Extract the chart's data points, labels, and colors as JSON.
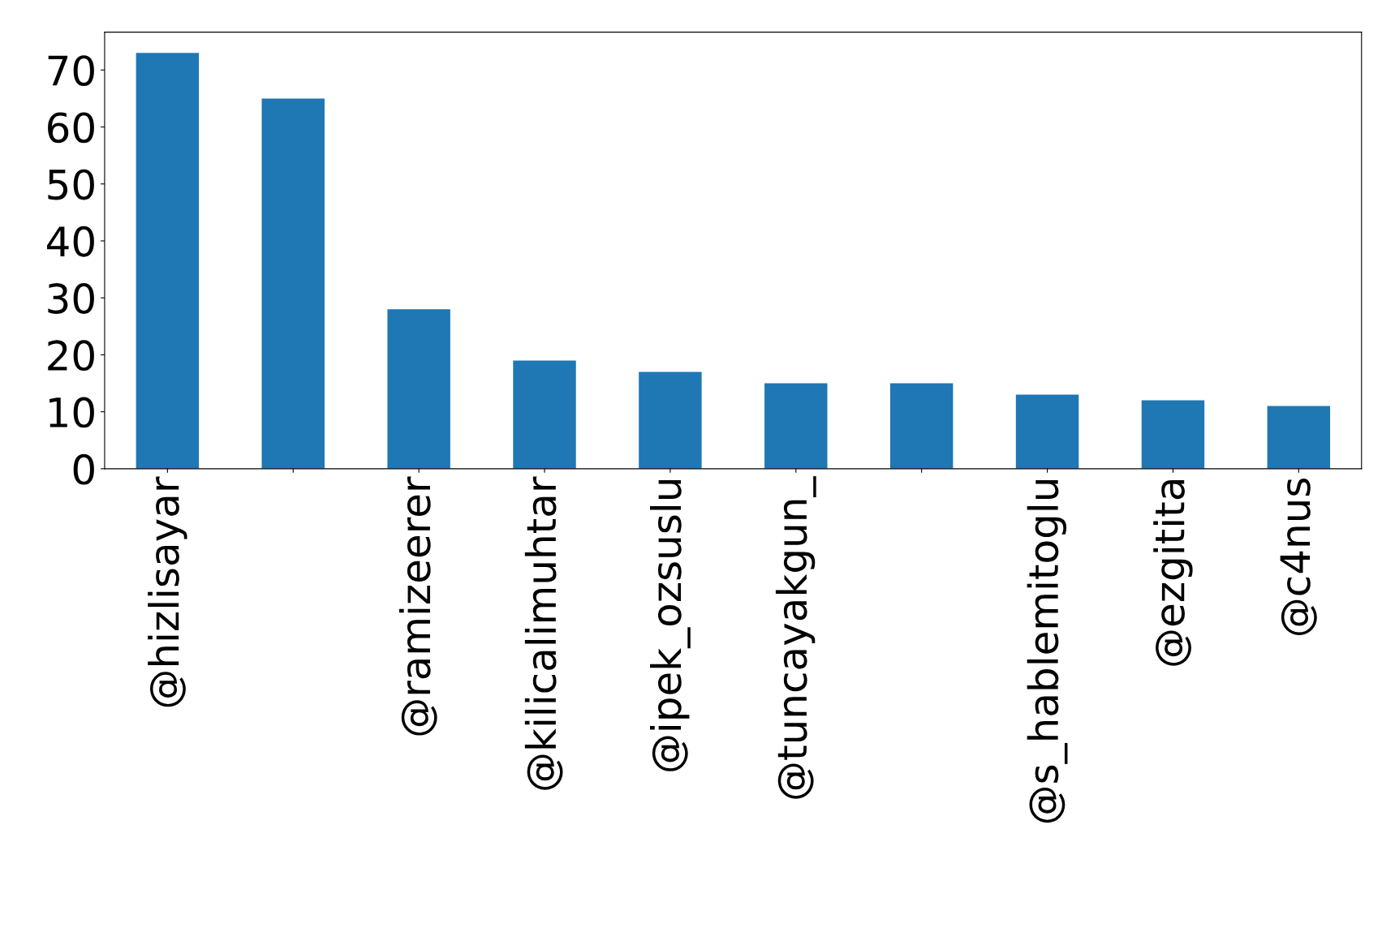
{
  "chart_data": {
    "type": "bar",
    "categories": [
      "@hizlisayar",
      null,
      "@ramizeerer",
      "@kilicalimuhtar",
      "@ipek_ozsuslu",
      "@tuncayakgun_",
      null,
      "@s_hablemitoglu",
      "@ezgitita",
      "@c4nus"
    ],
    "values": [
      73,
      65,
      28,
      19,
      17,
      15,
      15,
      13,
      12,
      11
    ],
    "color": "#1f77b4",
    "ylim": [
      0,
      76.65
    ],
    "yticks": [
      0,
      10,
      20,
      30,
      40,
      50,
      60,
      70
    ],
    "grid": false,
    "legend": false
  }
}
